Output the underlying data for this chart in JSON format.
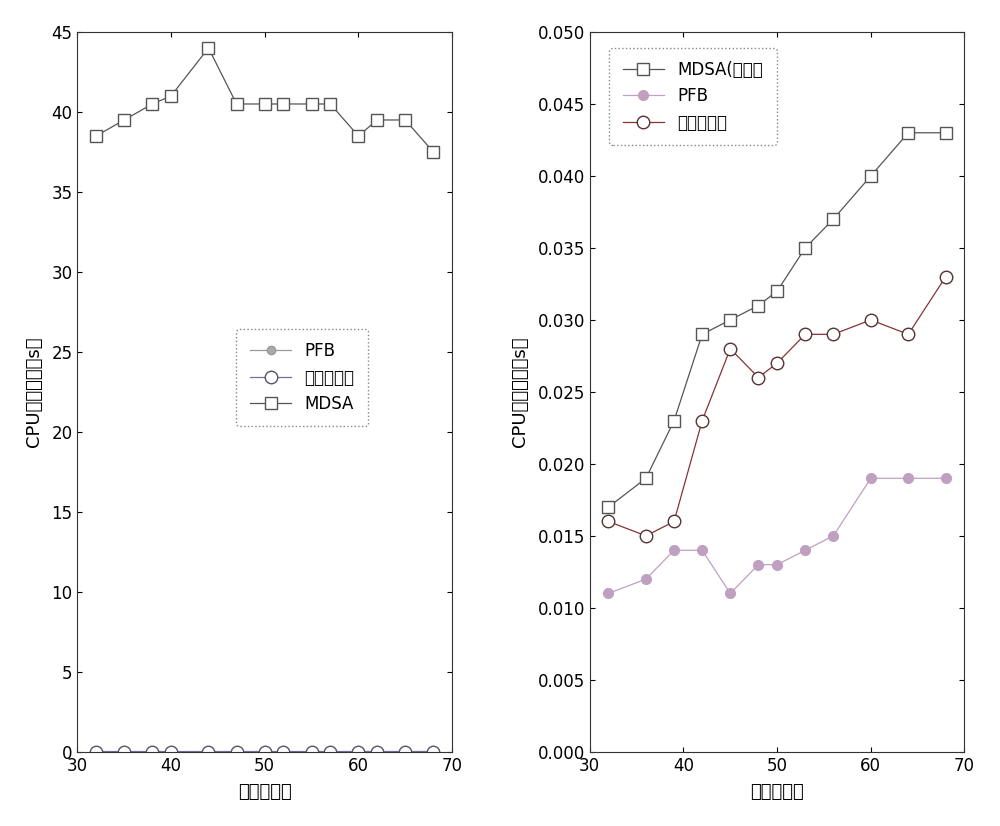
{
  "x_left": [
    32,
    35,
    38,
    40,
    44,
    47,
    50,
    52,
    55,
    57,
    60,
    62,
    65,
    68
  ],
  "mdsa_left": [
    38.5,
    39.5,
    40.5,
    41.0,
    44.0,
    40.5,
    40.5,
    40.5,
    40.5,
    40.5,
    38.5,
    39.5,
    39.5,
    37.5
  ],
  "pfb_left": [
    0.016,
    0.012,
    0.014,
    0.011,
    0.014,
    0.011,
    0.014,
    0.014,
    0.013,
    0.013,
    0.015,
    0.015,
    0.014,
    0.019
  ],
  "inv_left": [
    0.016,
    0.015,
    0.015,
    0.015,
    0.016,
    0.015,
    0.016,
    0.016,
    0.016,
    0.016,
    0.016,
    0.016,
    0.016,
    0.016
  ],
  "x_right": [
    32,
    36,
    39,
    42,
    45,
    48,
    50,
    53,
    56,
    60,
    64,
    68
  ],
  "mdsa_right": [
    0.017,
    0.019,
    0.023,
    0.029,
    0.03,
    0.031,
    0.032,
    0.035,
    0.037,
    0.04,
    0.043,
    0.043
  ],
  "pfb_right": [
    0.011,
    0.012,
    0.014,
    0.014,
    0.011,
    0.013,
    0.013,
    0.014,
    0.015,
    0.019,
    0.019,
    0.019
  ],
  "inv_right": [
    0.016,
    0.015,
    0.016,
    0.023,
    0.028,
    0.026,
    0.027,
    0.029,
    0.029,
    0.03,
    0.029,
    0.033
  ],
  "ylabel": "CPU执行时间（s）",
  "xlabel": "子载波数目",
  "legend_left_pfb": "PFB",
  "legend_left_inv": "本发明方法",
  "legend_left_mdsa": "MDSA",
  "legend_right_mdsa": "MDSA(部分）",
  "legend_right_pfb": "PFB",
  "legend_right_inv": "本发明方法",
  "xlim": [
    30,
    70
  ],
  "ylim_left": [
    0,
    45
  ],
  "ylim_right": [
    0,
    0.05
  ],
  "yticks_left": [
    0,
    5,
    10,
    15,
    20,
    25,
    30,
    35,
    40,
    45
  ],
  "yticks_right": [
    0,
    0.005,
    0.01,
    0.015,
    0.02,
    0.025,
    0.03,
    0.035,
    0.04,
    0.045,
    0.05
  ],
  "xticks": [
    30,
    40,
    50,
    60,
    70
  ],
  "line_color_dark": "#555555",
  "line_color_gray": "#999999",
  "line_color_purple": "#7070a0",
  "marker_gray_fill": "#aaaaaa",
  "pfb_right_color": "#c0a0c0",
  "inv_right_color": "#883333"
}
